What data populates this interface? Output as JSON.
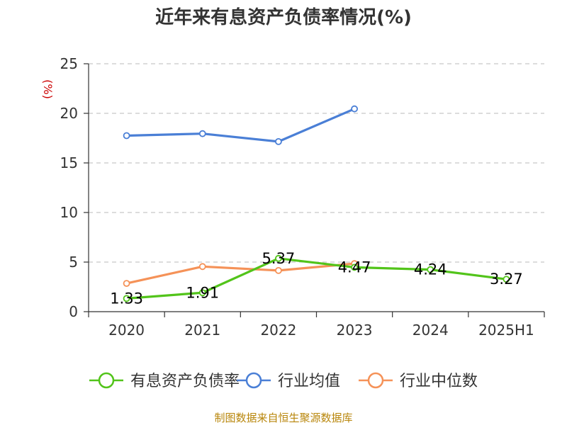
{
  "chart_data": {
    "type": "line",
    "title": "近年来有息资产负债率情况(%)",
    "ylabel": "(%)",
    "xlabel": "",
    "categories": [
      "2020",
      "2021",
      "2022",
      "2023",
      "2024",
      "2025H1"
    ],
    "ylim": [
      0,
      25
    ],
    "yticks": [
      0,
      5,
      10,
      15,
      20,
      25
    ],
    "grid": true,
    "legend_position": "bottom",
    "series": [
      {
        "name": "有息资产负债率",
        "color": "#52c41a",
        "values": [
          1.33,
          1.91,
          5.37,
          4.47,
          4.24,
          3.27
        ],
        "labels": [
          "1.33",
          "1.91",
          "5.37",
          "4.47",
          "4.24",
          "3.27"
        ]
      },
      {
        "name": "行业均值",
        "color": "#4a7fd6",
        "values": [
          17.75,
          17.95,
          17.15,
          20.45,
          null,
          null
        ]
      },
      {
        "name": "行业中位数",
        "color": "#f59258",
        "values": [
          2.85,
          4.55,
          4.15,
          4.85,
          null,
          null
        ]
      }
    ],
    "source": "制图数据来自恒生聚源数据库"
  }
}
